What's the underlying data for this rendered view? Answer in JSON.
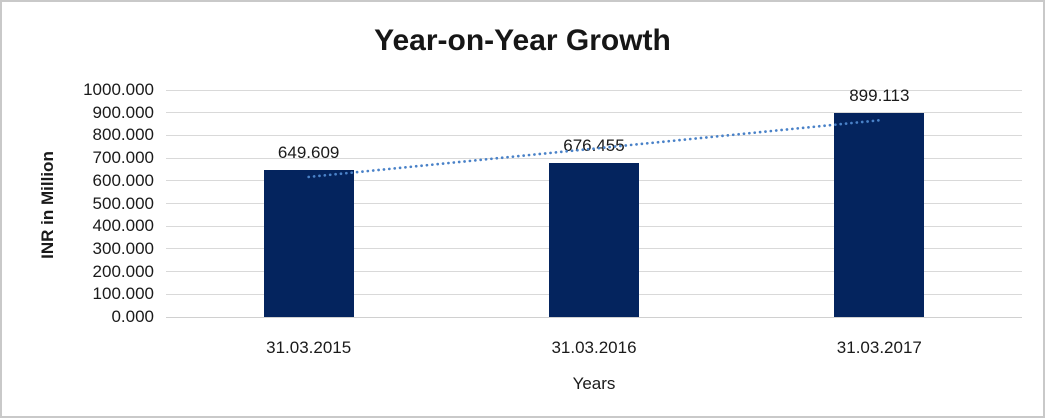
{
  "chart_data": {
    "type": "bar",
    "title": "Year-on-Year Growth",
    "categories": [
      "31.03.2015",
      "31.03.2016",
      "31.03.2017"
    ],
    "values": [
      649.609,
      676.455,
      899.113
    ],
    "data_labels": [
      "649.609",
      "676.455",
      "899.113"
    ],
    "xlabel": "Years",
    "ylabel": "INR in Million",
    "ylim": [
      0,
      1000
    ],
    "y_tick_step": 100,
    "y_tick_labels": [
      "1000.000",
      "900.000",
      "800.000",
      "700.000",
      "600.000",
      "500.000",
      "400.000",
      "300.000",
      "200.000",
      "100.000",
      "0.000"
    ],
    "grid": "horizontal",
    "legend": "none",
    "trendline": {
      "type": "linear",
      "style": "dotted",
      "applies_to": "values"
    },
    "colors": {
      "bar": "#04245e",
      "trendline": "#4a82c8",
      "gridline": "#d9d9d9",
      "zero_line": "#d0d0d0",
      "text": "#1a1a1a",
      "frame_border": "#c9c9c9",
      "background": "#ffffff"
    }
  }
}
